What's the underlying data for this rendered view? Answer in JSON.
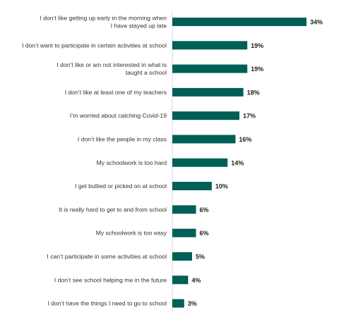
{
  "chart_data": {
    "type": "bar",
    "orientation": "horizontal",
    "categories": [
      "I don’t like getting up early in the morning when I have stayed up late",
      "I don’t want to participate in certain activities at school",
      "I don’t like or am not interested in what is taught a school",
      "I don’t like at least one of my teachers",
      "I’m worried about catching Covid-19",
      "I don’t like the people in my class",
      "My schoolwork is too hard",
      "I get bullied or picked on at school",
      "It is really hard to get to and from school",
      "My schoolwork is too easy",
      "I can’t participate in some activities at school",
      "I don’t see school helping me in the future",
      "I don’t have the things I need to go to school"
    ],
    "category_lines": [
      [
        "I don’t like getting up early in the morning when",
        "I have stayed up late"
      ],
      [
        "I don’t want to participate in certain activities at school"
      ],
      [
        "I don’t like or am not interested in what is",
        "taught a school"
      ],
      [
        "I don’t like at least one of my teachers"
      ],
      [
        "I’m worried about catching Covid-19"
      ],
      [
        "I don’t like the people in my class"
      ],
      [
        "My schoolwork is too hard"
      ],
      [
        "I get bullied or picked on at school"
      ],
      [
        "It is really hard to get to and from school"
      ],
      [
        "My schoolwork is too easy"
      ],
      [
        "I can’t participate in some activities at school"
      ],
      [
        "I don’t see school helping me in the future"
      ],
      [
        "I don’t have the things I need to go to school"
      ]
    ],
    "values": [
      34,
      19,
      19,
      18,
      17,
      16,
      14,
      10,
      6,
      6,
      5,
      4,
      3
    ],
    "value_labels": [
      "34%",
      "19%",
      "19%",
      "18%",
      "17%",
      "16%",
      "14%",
      "10%",
      "6%",
      "6%",
      "5%",
      "4%",
      "3%"
    ],
    "unit": "%",
    "xlim": [
      0,
      34
    ],
    "grid": false,
    "legend": "none",
    "title": "",
    "xlabel": "",
    "ylabel": "",
    "bar_color": "#005f56"
  }
}
